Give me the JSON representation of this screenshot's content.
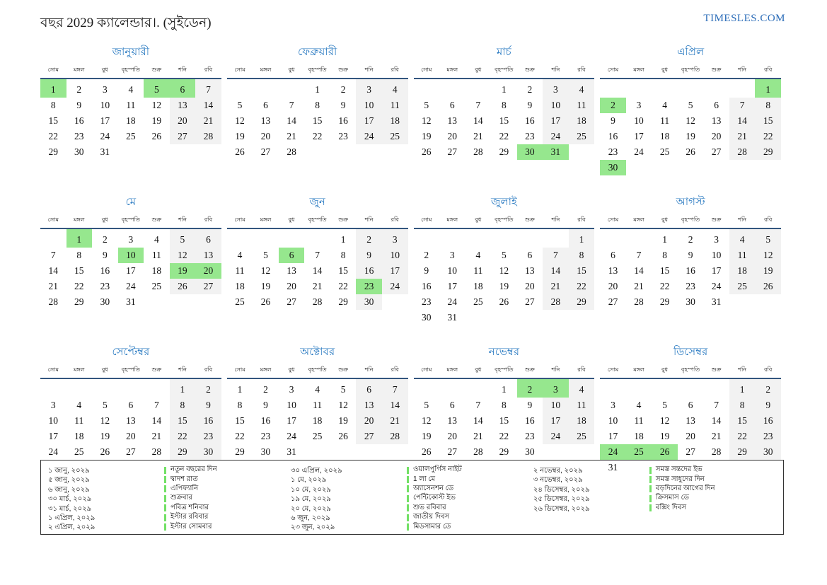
{
  "page": {
    "title": "বছর 2029 ক্যালেন্ডার।. (সুইডেন)",
    "site": "TIMESLES.COM"
  },
  "colors": {
    "holiday_green": "#96e78e",
    "holiday_green_bright": "#72e065",
    "weekend_gray": "#f2f2f2",
    "month_title_blue": "#2b7bc2",
    "header_line_blue": "#33567f",
    "site_blue": "#2b6cb8"
  },
  "weekdays": [
    "সোম",
    "মঙ্গল",
    "বুধ",
    "বৃহস্পতি",
    "শুক্র",
    "শনি",
    "রবি"
  ],
  "months": [
    {
      "name": "জানুয়ারী",
      "holidays": [
        1,
        5,
        6
      ],
      "weeks": [
        [
          "1",
          "2",
          "3",
          "4",
          "5",
          "6",
          "7"
        ],
        [
          "8",
          "9",
          "10",
          "11",
          "12",
          "13",
          "14"
        ],
        [
          "15",
          "16",
          "17",
          "18",
          "19",
          "20",
          "21"
        ],
        [
          "22",
          "23",
          "24",
          "25",
          "26",
          "27",
          "28"
        ],
        [
          "29",
          "30",
          "31",
          "",
          "",
          "",
          ""
        ]
      ]
    },
    {
      "name": "ফেব্রুয়ারী",
      "holidays": [],
      "weeks": [
        [
          "",
          "",
          "",
          "1",
          "2",
          "3",
          "4"
        ],
        [
          "5",
          "6",
          "7",
          "8",
          "9",
          "10",
          "11"
        ],
        [
          "12",
          "13",
          "14",
          "15",
          "16",
          "17",
          "18"
        ],
        [
          "19",
          "20",
          "21",
          "22",
          "23",
          "24",
          "25"
        ],
        [
          "26",
          "27",
          "28",
          "",
          "",
          "",
          ""
        ]
      ]
    },
    {
      "name": "মার্চ",
      "holidays": [
        30,
        31
      ],
      "weeks": [
        [
          "",
          "",
          "",
          "1",
          "2",
          "3",
          "4"
        ],
        [
          "5",
          "6",
          "7",
          "8",
          "9",
          "10",
          "11"
        ],
        [
          "12",
          "13",
          "14",
          "15",
          "16",
          "17",
          "18"
        ],
        [
          "19",
          "20",
          "21",
          "22",
          "23",
          "24",
          "25"
        ],
        [
          "26",
          "27",
          "28",
          "29",
          "30",
          "31",
          ""
        ]
      ]
    },
    {
      "name": "এপ্রিল",
      "holidays": [
        1,
        2,
        30
      ],
      "weeks": [
        [
          "",
          "",
          "",
          "",
          "",
          "",
          "1"
        ],
        [
          "2",
          "3",
          "4",
          "5",
          "6",
          "7",
          "8"
        ],
        [
          "9",
          "10",
          "11",
          "12",
          "13",
          "14",
          "15"
        ],
        [
          "16",
          "17",
          "18",
          "19",
          "20",
          "21",
          "22"
        ],
        [
          "23",
          "24",
          "25",
          "26",
          "27",
          "28",
          "29"
        ],
        [
          "30",
          "",
          "",
          "",
          "",
          "",
          ""
        ]
      ]
    },
    {
      "name": "মে",
      "holidays": [
        1,
        10,
        19,
        20
      ],
      "weeks": [
        [
          "",
          "1",
          "2",
          "3",
          "4",
          "5",
          "6"
        ],
        [
          "7",
          "8",
          "9",
          "10",
          "11",
          "12",
          "13"
        ],
        [
          "14",
          "15",
          "16",
          "17",
          "18",
          "19",
          "20"
        ],
        [
          "21",
          "22",
          "23",
          "24",
          "25",
          "26",
          "27"
        ],
        [
          "28",
          "29",
          "30",
          "31",
          "",
          "",
          ""
        ]
      ]
    },
    {
      "name": "জুন",
      "holidays": [
        6,
        23
      ],
      "weeks": [
        [
          "",
          "",
          "",
          "",
          "1",
          "2",
          "3"
        ],
        [
          "4",
          "5",
          "6",
          "7",
          "8",
          "9",
          "10"
        ],
        [
          "11",
          "12",
          "13",
          "14",
          "15",
          "16",
          "17"
        ],
        [
          "18",
          "19",
          "20",
          "21",
          "22",
          "23",
          "24"
        ],
        [
          "25",
          "26",
          "27",
          "28",
          "29",
          "30",
          ""
        ]
      ]
    },
    {
      "name": "জুলাই",
      "holidays": [],
      "weeks": [
        [
          "",
          "",
          "",
          "",
          "",
          "",
          "1"
        ],
        [
          "2",
          "3",
          "4",
          "5",
          "6",
          "7",
          "8"
        ],
        [
          "9",
          "10",
          "11",
          "12",
          "13",
          "14",
          "15"
        ],
        [
          "16",
          "17",
          "18",
          "19",
          "20",
          "21",
          "22"
        ],
        [
          "23",
          "24",
          "25",
          "26",
          "27",
          "28",
          "29"
        ],
        [
          "30",
          "31",
          "",
          "",
          "",
          "",
          ""
        ]
      ]
    },
    {
      "name": "আগস্ট",
      "holidays": [],
      "weeks": [
        [
          "",
          "",
          "1",
          "2",
          "3",
          "4",
          "5"
        ],
        [
          "6",
          "7",
          "8",
          "9",
          "10",
          "11",
          "12"
        ],
        [
          "13",
          "14",
          "15",
          "16",
          "17",
          "18",
          "19"
        ],
        [
          "20",
          "21",
          "22",
          "23",
          "24",
          "25",
          "26"
        ],
        [
          "27",
          "28",
          "29",
          "30",
          "31",
          "",
          ""
        ]
      ]
    },
    {
      "name": "সেপ্টেম্বর",
      "holidays": [],
      "weeks": [
        [
          "",
          "",
          "",
          "",
          "",
          "1",
          "2"
        ],
        [
          "3",
          "4",
          "5",
          "6",
          "7",
          "8",
          "9"
        ],
        [
          "10",
          "11",
          "12",
          "13",
          "14",
          "15",
          "16"
        ],
        [
          "17",
          "18",
          "19",
          "20",
          "21",
          "22",
          "23"
        ],
        [
          "24",
          "25",
          "26",
          "27",
          "28",
          "29",
          "30"
        ]
      ]
    },
    {
      "name": "অক্টোবর",
      "holidays": [],
      "weeks": [
        [
          "1",
          "2",
          "3",
          "4",
          "5",
          "6",
          "7"
        ],
        [
          "8",
          "9",
          "10",
          "11",
          "12",
          "13",
          "14"
        ],
        [
          "15",
          "16",
          "17",
          "18",
          "19",
          "20",
          "21"
        ],
        [
          "22",
          "23",
          "24",
          "25",
          "26",
          "27",
          "28"
        ],
        [
          "29",
          "30",
          "31",
          "",
          "",
          "",
          ""
        ]
      ]
    },
    {
      "name": "নভেম্বর",
      "holidays": [
        2,
        3
      ],
      "weeks": [
        [
          "",
          "",
          "",
          "1",
          "2",
          "3",
          "4"
        ],
        [
          "5",
          "6",
          "7",
          "8",
          "9",
          "10",
          "11"
        ],
        [
          "12",
          "13",
          "14",
          "15",
          "16",
          "17",
          "18"
        ],
        [
          "19",
          "20",
          "21",
          "22",
          "23",
          "24",
          "25"
        ],
        [
          "26",
          "27",
          "28",
          "29",
          "30",
          "",
          ""
        ]
      ]
    },
    {
      "name": "ডিসেম্বর",
      "holidays": [
        24,
        25,
        26
      ],
      "weeks": [
        [
          "",
          "",
          "",
          "",
          "",
          "1",
          "2"
        ],
        [
          "3",
          "4",
          "5",
          "6",
          "7",
          "8",
          "9"
        ],
        [
          "10",
          "11",
          "12",
          "13",
          "14",
          "15",
          "16"
        ],
        [
          "17",
          "18",
          "19",
          "20",
          "21",
          "22",
          "23"
        ],
        [
          "24",
          "25",
          "26",
          "27",
          "28",
          "29",
          "30"
        ],
        [
          "31",
          "",
          "",
          "",
          "",
          "",
          ""
        ]
      ]
    }
  ],
  "legend": {
    "columns": [
      {
        "entries": [
          {
            "date": "১ জানু, ২০২৯",
            "name": "নতুন বছরের দিন"
          },
          {
            "date": "৫ জানু, ২০২৯",
            "name": "দ্বাদশ রাত"
          },
          {
            "date": "৬ জানু, ২০২৯",
            "name": "এপিফ্যানি"
          },
          {
            "date": "৩০ মার্চ, ২০২৯",
            "name": "শুক্রবার"
          },
          {
            "date": "৩১ মার্চ, ২০২৯",
            "name": "পবিত্র শনিবার"
          },
          {
            "date": "১ এপ্রিল, ২০২৯",
            "name": "ইস্টার রবিবার"
          },
          {
            "date": "২ এপ্রিল, ২০২৯",
            "name": "ইস্টার সোমবার"
          }
        ]
      },
      {
        "entries": [
          {
            "date": "৩০ এপ্রিল, ২০২৯",
            "name": "ওয়ালপুর্গিস নাইট"
          },
          {
            "date": "১ মে, ২০২৯",
            "name": "1 লা মে"
          },
          {
            "date": "১০ মে, ২০২৯",
            "name": "অ্যাসেনশন ডে"
          },
          {
            "date": "১৯ মে, ২০২৯",
            "name": "পেন্টিকোস্ট ইভ"
          },
          {
            "date": "২০ মে, ২০২৯",
            "name": "শুভ রবিবার"
          },
          {
            "date": "৬ জুন, ২০২৯",
            "name": "জাতীয় দিবস"
          },
          {
            "date": "২৩ জুন, ২০২৯",
            "name": "মিডসামার ডে"
          }
        ]
      },
      {
        "entries": [
          {
            "date": "২ নভেম্বর, ২০২৯",
            "name": "সমস্ত সন্তদের ইভ"
          },
          {
            "date": "৩ নভেম্বর, ২০২৯",
            "name": "সমস্ত সাধুদের দিন"
          },
          {
            "date": "২৪ ডিসেম্বর, ২০২৯",
            "name": "বড়দিনের আগের দিন"
          },
          {
            "date": "২৫ ডিসেম্বর, ২০২৯",
            "name": "ক্রিসমাস ডে"
          },
          {
            "date": "২৬ ডিসেম্বর, ২০২৯",
            "name": "বক্সিং দিবস"
          }
        ]
      }
    ]
  }
}
